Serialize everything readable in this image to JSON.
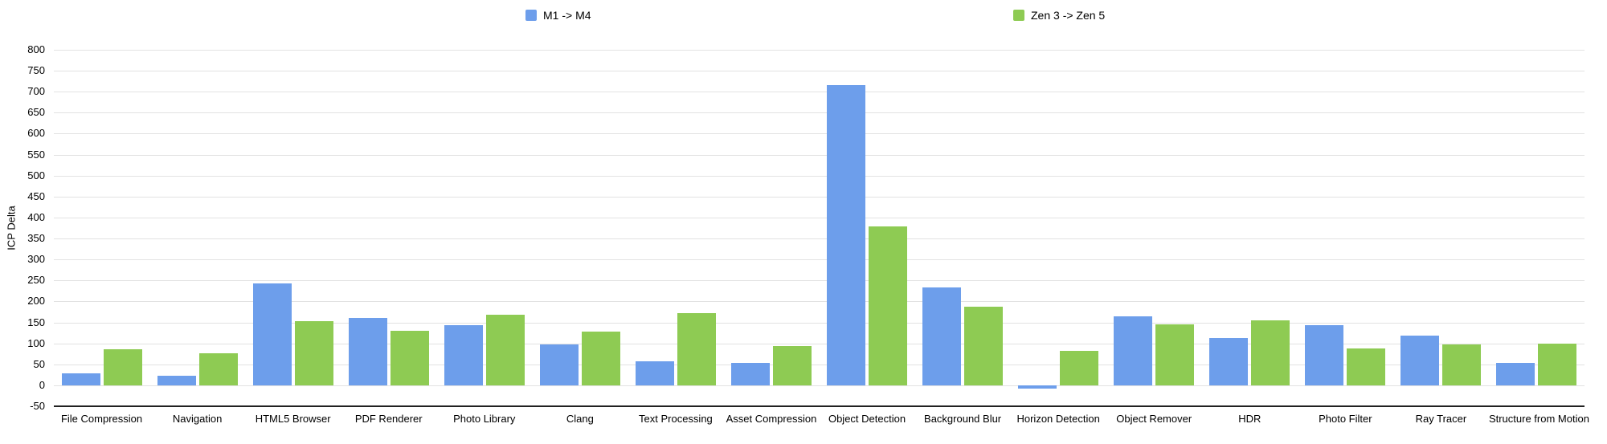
{
  "chart_data": {
    "type": "bar",
    "title": "",
    "ylabel": "ICP Delta",
    "xlabel": "",
    "ylim": [
      -50,
      800
    ],
    "ytick_step": 50,
    "yticks": [
      800,
      750,
      700,
      650,
      600,
      550,
      500,
      450,
      400,
      350,
      300,
      250,
      200,
      150,
      100,
      50,
      0,
      -50
    ],
    "grid": true,
    "legend_position": "top",
    "categories": [
      "File Compression",
      "Navigation",
      "HTML5 Browser",
      "PDF Renderer",
      "Photo Library",
      "Clang",
      "Text Processing",
      "Asset Compression",
      "Object Detection",
      "Background Blur",
      "Horizon Detection",
      "Object Remover",
      "HDR",
      "Photo Filter",
      "Ray Tracer",
      "Structure from Motion"
    ],
    "series": [
      {
        "name": "M1 -> M4",
        "color": "#6d9eeb",
        "values": [
          28,
          22,
          243,
          161,
          143,
          98,
          57,
          54,
          716,
          233,
          -8,
          164,
          112,
          143,
          119,
          53
        ]
      },
      {
        "name": "Zen 3 -> Zen 5",
        "color": "#8ecb53",
        "values": [
          85,
          76,
          153,
          129,
          168,
          128,
          173,
          94,
          378,
          188,
          83,
          145,
          155,
          87,
          98,
          100
        ]
      }
    ]
  }
}
